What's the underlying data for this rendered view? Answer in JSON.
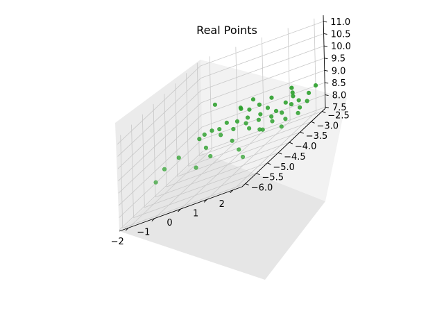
{
  "chart_data": {
    "type": "scatter",
    "title": "Real Points",
    "xlabel": "",
    "ylabel": "",
    "zlabel": "",
    "projection": "3d",
    "grid": true,
    "marker_color": "#2ca02c",
    "x_ticks": [
      "−2",
      "−1",
      "0",
      "1",
      "2"
    ],
    "x_tick_values": [
      -2,
      -1,
      0,
      1,
      2
    ],
    "y_ticks": [
      "−2.5",
      "−3.0",
      "−3.5",
      "−4.0",
      "−4.5",
      "−5.0",
      "−5.5",
      "−6.0"
    ],
    "y_tick_values": [
      -2.5,
      -3.0,
      -3.5,
      -4.0,
      -4.5,
      -5.0,
      -5.5,
      -6.0
    ],
    "z_ticks": [
      "7.5",
      "8.0",
      "8.5",
      "9.0",
      "9.5",
      "10.0",
      "10.5",
      "11.0"
    ],
    "z_tick_values": [
      7.5,
      8.0,
      8.5,
      9.0,
      9.5,
      10.0,
      10.5,
      11.0
    ],
    "xlim": [
      -2.35,
      2.35
    ],
    "ylim": [
      -6.15,
      -2.35
    ],
    "zlim": [
      7.45,
      11.25
    ],
    "points": [
      {
        "x": -1.2,
        "y": -3.1,
        "z": 9.6
      },
      {
        "x": -1.9,
        "y": -4.6,
        "z": 8.5
      },
      {
        "x": -1.6,
        "y": -4.3,
        "z": 8.6
      },
      {
        "x": -1.4,
        "y": -3.6,
        "z": 8.7
      },
      {
        "x": -1.9,
        "y": -5.0,
        "z": 8.3
      },
      {
        "x": -1.2,
        "y": -3.6,
        "z": 8.8
      },
      {
        "x": -1.0,
        "y": -3.5,
        "z": 8.8
      },
      {
        "x": -0.9,
        "y": -3.9,
        "z": 8.4
      },
      {
        "x": -0.8,
        "y": -3.4,
        "z": 8.7
      },
      {
        "x": -0.6,
        "y": -3.3,
        "z": 8.8
      },
      {
        "x": -0.5,
        "y": -3.7,
        "z": 8.6
      },
      {
        "x": -0.7,
        "y": -4.6,
        "z": 8.1
      },
      {
        "x": -0.4,
        "y": -4.3,
        "z": 8.2
      },
      {
        "x": -0.3,
        "y": -3.0,
        "z": 9.0
      },
      {
        "x": -0.2,
        "y": -3.3,
        "z": 8.7
      },
      {
        "x": -0.1,
        "y": -3.6,
        "z": 8.6
      },
      {
        "x": 0.1,
        "y": -3.1,
        "z": 8.9
      },
      {
        "x": 0.2,
        "y": -3.3,
        "z": 8.7
      },
      {
        "x": 0.1,
        "y": -3.9,
        "z": 8.3
      },
      {
        "x": 0.3,
        "y": -3.5,
        "z": 8.6
      },
      {
        "x": 0.4,
        "y": -3.0,
        "z": 8.9
      },
      {
        "x": 0.5,
        "y": -3.6,
        "z": 8.4
      },
      {
        "x": 0.6,
        "y": -4.2,
        "z": 8.0
      },
      {
        "x": 0.6,
        "y": -3.2,
        "z": 8.6
      },
      {
        "x": 0.7,
        "y": -3.4,
        "z": 8.5
      },
      {
        "x": 0.8,
        "y": -3.1,
        "z": 8.7
      },
      {
        "x": 0.9,
        "y": -3.6,
        "z": 8.2
      },
      {
        "x": 1.0,
        "y": -4.5,
        "z": 7.8
      },
      {
        "x": 1.1,
        "y": -3.3,
        "z": 8.4
      },
      {
        "x": 1.1,
        "y": -3.7,
        "z": 8.2
      },
      {
        "x": 1.2,
        "y": -3.2,
        "z": 8.5
      },
      {
        "x": 1.3,
        "y": -3.5,
        "z": 8.3
      },
      {
        "x": 1.4,
        "y": -3.0,
        "z": 8.6
      },
      {
        "x": 1.5,
        "y": -3.3,
        "z": 8.4
      },
      {
        "x": 1.6,
        "y": -2.9,
        "z": 8.7
      },
      {
        "x": 1.7,
        "y": -3.1,
        "z": 8.5
      },
      {
        "x": 1.8,
        "y": -3.5,
        "z": 8.2
      },
      {
        "x": 1.9,
        "y": -3.0,
        "z": 8.5
      },
      {
        "x": 1.9,
        "y": -3.8,
        "z": 8.1
      },
      {
        "x": 2.1,
        "y": -3.2,
        "z": 8.3
      },
      {
        "x": 2.2,
        "y": -3.4,
        "z": 8.2
      },
      {
        "x": 2.2,
        "y": -2.9,
        "z": 8.6
      },
      {
        "x": 2.3,
        "y": -3.1,
        "z": 8.4
      },
      {
        "x": 2.3,
        "y": -2.7,
        "z": 8.7
      },
      {
        "x": 1.3,
        "y": -2.6,
        "z": 8.9
      },
      {
        "x": 0.7,
        "y": -2.8,
        "z": 8.9
      },
      {
        "x": -0.4,
        "y": -2.9,
        "z": 9.0
      },
      {
        "x": 0.0,
        "y": -2.8,
        "z": 9.1
      },
      {
        "x": 1.5,
        "y": -2.8,
        "z": 8.8
      }
    ]
  }
}
